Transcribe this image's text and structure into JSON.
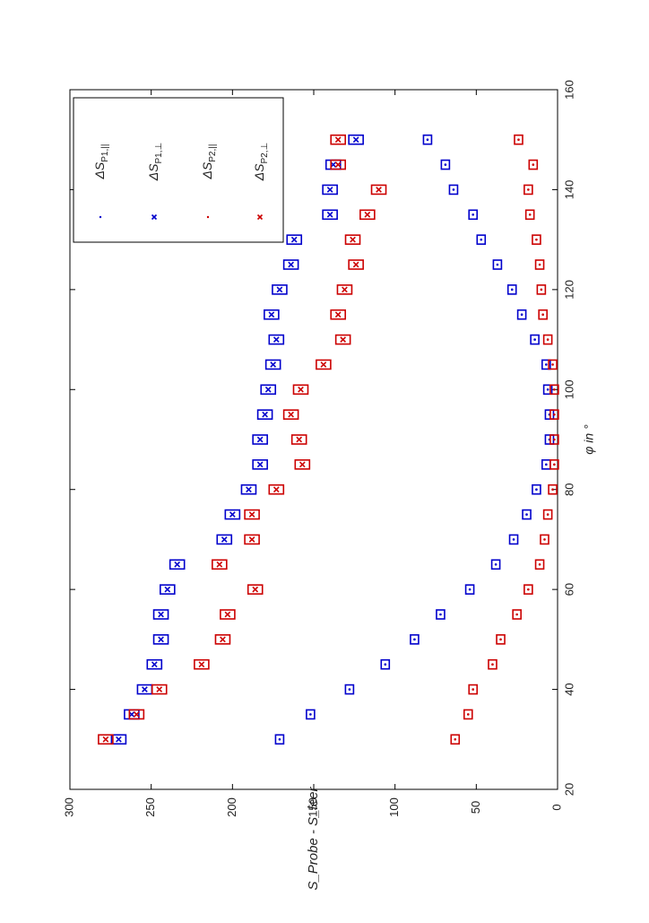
{
  "chart_data": {
    "type": "scatter",
    "orientation": "rotated-90-clockwise",
    "xlabel": "φ in °",
    "ylabel": "S_Probe - S_leer",
    "xlim": [
      20,
      160
    ],
    "ylim": [
      0,
      300
    ],
    "x_ticks": [
      "20",
      "40",
      "60",
      "80",
      "100",
      "120",
      "140",
      "160"
    ],
    "y_ticks": [
      "0",
      "50",
      "100",
      "150",
      "200",
      "250",
      "300"
    ],
    "legend_position": "top-right",
    "grid": false,
    "series": [
      {
        "name": "ΔS_P1,||",
        "sub": "P1,||",
        "color": "#0000cc",
        "marker": "dot",
        "x": [
          30,
          35,
          40,
          45,
          50,
          55,
          60,
          65,
          70,
          75,
          80,
          85,
          90,
          95,
          100,
          105,
          110,
          115,
          120,
          125,
          130,
          135,
          140,
          145,
          150
        ],
        "y": [
          171,
          152,
          128,
          106,
          88,
          72,
          54,
          38,
          27,
          19,
          13,
          7,
          5,
          5,
          6,
          7,
          14,
          22,
          28,
          37,
          47,
          52,
          64,
          69,
          80
        ]
      },
      {
        "name": "ΔS_P1,⊥",
        "sub": "P1,⊥",
        "color": "#0000cc",
        "marker": "x",
        "x": [
          30,
          35,
          40,
          45,
          50,
          55,
          60,
          65,
          70,
          75,
          80,
          85,
          90,
          95,
          100,
          105,
          110,
          115,
          120,
          125,
          130,
          135,
          140,
          145,
          150
        ],
        "y": [
          270,
          262,
          254,
          248,
          244,
          244,
          240,
          234,
          205,
          200,
          190,
          183,
          183,
          180,
          178,
          175,
          173,
          176,
          171,
          164,
          162,
          140,
          140,
          138,
          124
        ]
      },
      {
        "name": "ΔS_P2,||",
        "sub": "P2,||",
        "color": "#cc0000",
        "marker": "dot",
        "x": [
          30,
          35,
          40,
          45,
          50,
          55,
          60,
          65,
          70,
          75,
          80,
          85,
          90,
          95,
          100,
          105,
          110,
          115,
          120,
          125,
          130,
          135,
          140,
          145,
          150
        ],
        "y": [
          63,
          55,
          52,
          40,
          35,
          25,
          18,
          11,
          8,
          6,
          3,
          2,
          2,
          2,
          2,
          3,
          6,
          9,
          10,
          11,
          13,
          17,
          18,
          15,
          24
        ]
      },
      {
        "name": "ΔS_P2,⊥",
        "sub": "P2,⊥",
        "color": "#cc0000",
        "marker": "x",
        "x": [
          30,
          35,
          40,
          45,
          50,
          55,
          60,
          65,
          70,
          75,
          80,
          85,
          90,
          95,
          100,
          105,
          110,
          115,
          120,
          125,
          130,
          135,
          140,
          145,
          150
        ],
        "y": [
          278,
          259,
          245,
          219,
          206,
          203,
          186,
          208,
          188,
          188,
          173,
          157,
          159,
          164,
          158,
          144,
          132,
          135,
          131,
          124,
          126,
          117,
          110,
          135,
          135
        ]
      }
    ]
  }
}
